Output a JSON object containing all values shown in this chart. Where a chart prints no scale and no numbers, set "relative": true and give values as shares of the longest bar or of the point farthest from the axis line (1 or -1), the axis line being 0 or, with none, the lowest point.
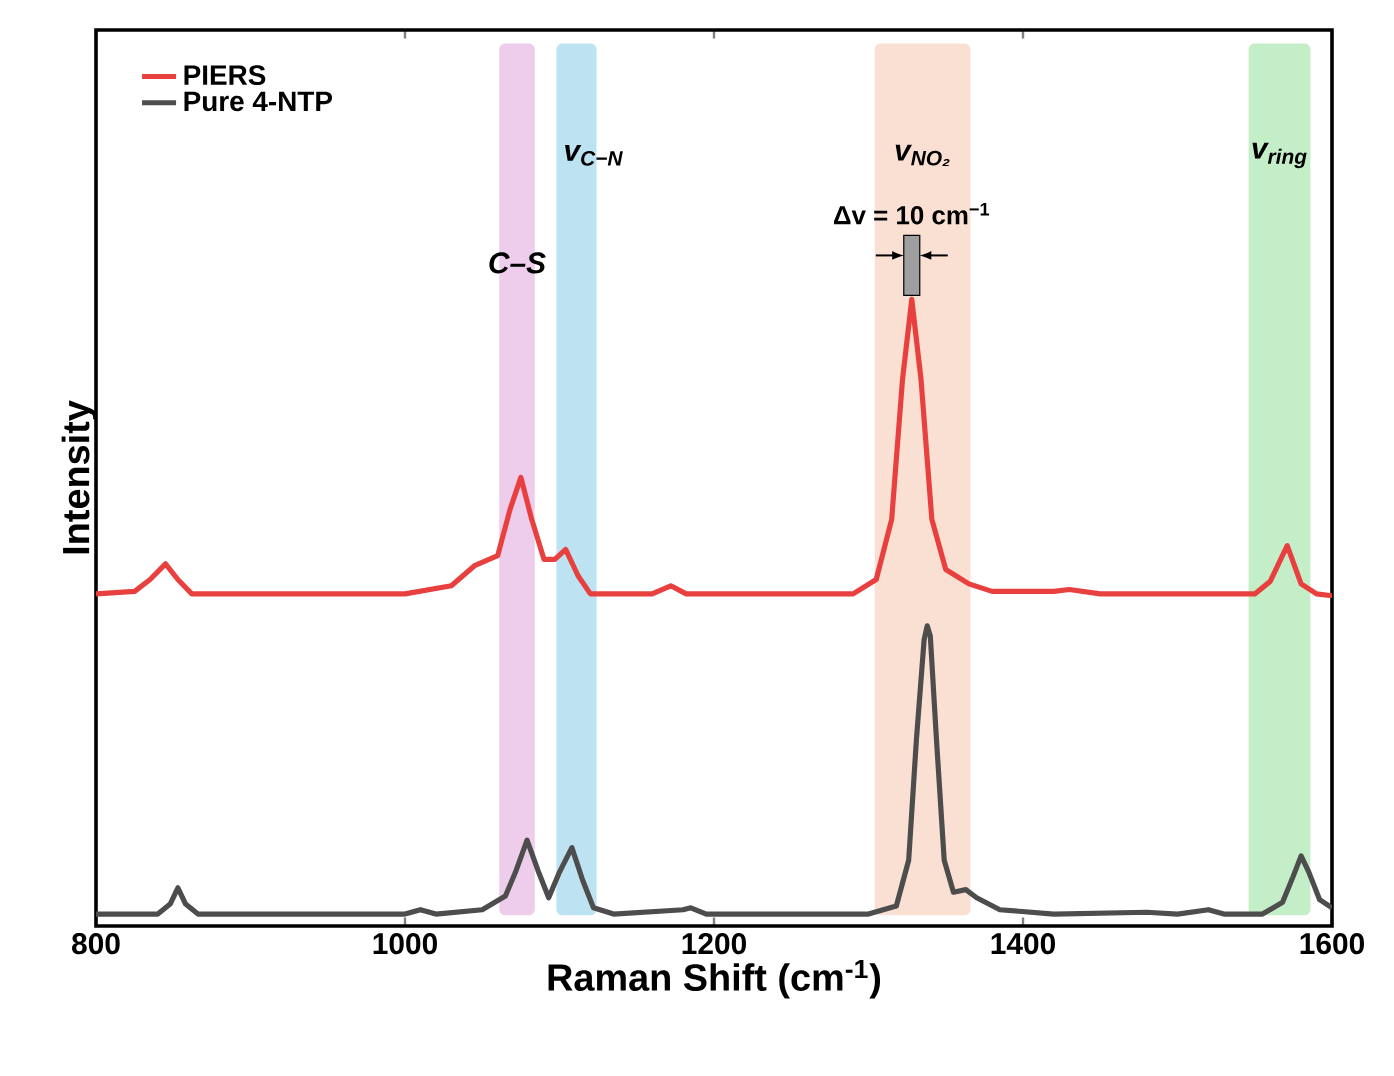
{
  "chart_data": {
    "type": "line",
    "xlabel": "Raman Shift (cm$^{-1}$)",
    "ylabel": "Intensity",
    "relative": true,
    "legend": "top left",
    "grid": false,
    "xlim": [
      800,
      1600
    ],
    "xticks": [
      800,
      1000,
      1200,
      1400,
      1600
    ],
    "series": [
      {
        "name": "PIERS",
        "color": "#e8403f",
        "x": [
          800,
          825,
          835,
          845,
          853,
          862,
          1000,
          1030,
          1045,
          1060,
          1068,
          1075,
          1082,
          1090,
          1097,
          1104,
          1112,
          1120,
          1160,
          1172,
          1182,
          1290,
          1305,
          1315,
          1322,
          1328,
          1334,
          1341,
          1350,
          1365,
          1380,
          1420,
          1430,
          1450,
          1550,
          1560,
          1571,
          1580,
          1590,
          1600
        ],
        "values": [
          0.53,
          0.534,
          0.553,
          0.578,
          0.553,
          0.53,
          0.53,
          0.543,
          0.575,
          0.591,
          0.665,
          0.716,
          0.649,
          0.585,
          0.585,
          0.601,
          0.559,
          0.53,
          0.53,
          0.543,
          0.53,
          0.53,
          0.553,
          0.649,
          0.872,
          1.0,
          0.872,
          0.649,
          0.569,
          0.546,
          0.534,
          0.534,
          0.537,
          0.53,
          0.53,
          0.55,
          0.607,
          0.546,
          0.53,
          0.527
        ]
      },
      {
        "name": "Pure 4-NTP",
        "color": "#4d4d4d",
        "x": [
          800,
          840,
          848,
          853,
          858,
          866,
          1000,
          1010,
          1020,
          1050,
          1065,
          1072,
          1079,
          1086,
          1093,
          1100,
          1108,
          1115,
          1122,
          1135,
          1180,
          1185,
          1195,
          1300,
          1318,
          1326,
          1331,
          1336,
          1338,
          1340,
          1344,
          1349,
          1355,
          1363,
          1370,
          1385,
          1420,
          1480,
          1500,
          1520,
          1530,
          1555,
          1568,
          1575,
          1580,
          1585,
          1592,
          1600
        ],
        "values": [
          0.019,
          0.019,
          0.035,
          0.061,
          0.035,
          0.019,
          0.019,
          0.026,
          0.019,
          0.026,
          0.048,
          0.089,
          0.137,
          0.089,
          0.045,
          0.086,
          0.125,
          0.073,
          0.029,
          0.019,
          0.026,
          0.029,
          0.019,
          0.019,
          0.032,
          0.105,
          0.297,
          0.457,
          0.479,
          0.463,
          0.297,
          0.105,
          0.054,
          0.058,
          0.045,
          0.026,
          0.019,
          0.022,
          0.019,
          0.026,
          0.019,
          0.019,
          0.038,
          0.08,
          0.112,
          0.086,
          0.042,
          0.029
        ]
      }
    ],
    "bands": [
      {
        "axis": "x",
        "from": 1061,
        "to": 1084,
        "label": "C–S",
        "color": "#eecdec"
      },
      {
        "axis": "x",
        "from": 1098,
        "to": 1124,
        "label": "v$_{C−N}$",
        "color": "#bde3f3"
      },
      {
        "axis": "x",
        "from": 1304,
        "to": 1366,
        "label": "v$_{NO₂}$",
        "color": "#fae0d3"
      },
      {
        "axis": "x",
        "from": 1546,
        "to": 1586,
        "label": "v$_{ring}$",
        "color": "#c3eec8"
      }
    ],
    "annotations": [
      "Δv = 10 cm$^{−1}$"
    ]
  }
}
